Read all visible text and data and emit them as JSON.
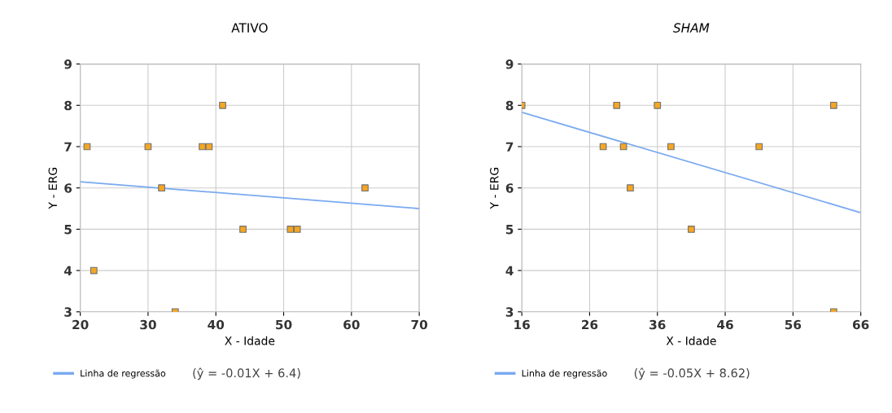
{
  "chart_data": [
    {
      "type": "scatter",
      "title": "ATIVO",
      "xlabel": "X - Idade",
      "ylabel": "Y - ERG",
      "xlim": [
        20,
        70
      ],
      "xticks": [
        20,
        30,
        40,
        50,
        60,
        70
      ],
      "ylim": [
        3,
        9
      ],
      "yticks": [
        3,
        4,
        5,
        6,
        7,
        8,
        9
      ],
      "grid": true,
      "legend": "bottom left",
      "annotations": [
        "(ŷ = -0.01X + 6.4)"
      ],
      "series": [
        {
          "marker": "square",
          "color": "#f5a623",
          "x": [
            21,
            22,
            30,
            32,
            34,
            38,
            39,
            41,
            44,
            51,
            52,
            62
          ],
          "values": [
            7,
            4,
            7,
            6,
            3,
            7,
            7,
            8,
            5,
            5,
            5,
            6
          ]
        },
        {
          "type": "line",
          "name": "Linha de regressão",
          "color": "#7aaaf0",
          "x": [
            20,
            70
          ],
          "values": [
            6.15,
            5.5
          ]
        }
      ]
    },
    {
      "type": "scatter",
      "title": "SHAM",
      "xlabel": "X - Idade",
      "ylabel": "Y - ERG",
      "xlim": [
        16,
        66
      ],
      "xticks": [
        16,
        26,
        36,
        46,
        56,
        66
      ],
      "ylim": [
        3,
        9
      ],
      "yticks": [
        3,
        4,
        5,
        6,
        7,
        8,
        9
      ],
      "grid": true,
      "legend": "bottom left",
      "annotations": [
        "(ŷ = -0.05X + 8.62)"
      ],
      "series": [
        {
          "marker": "square",
          "color": "#f5a623",
          "x": [
            16,
            28,
            30,
            31,
            32,
            36,
            38,
            41,
            51,
            62,
            62
          ],
          "values": [
            8,
            7,
            8,
            7,
            6,
            8,
            7,
            5,
            7,
            8,
            3
          ]
        },
        {
          "type": "line",
          "name": "Linha de regressão",
          "color": "#7aaaf0",
          "x": [
            16,
            66
          ],
          "values": [
            7.83,
            5.4
          ]
        }
      ]
    }
  ]
}
